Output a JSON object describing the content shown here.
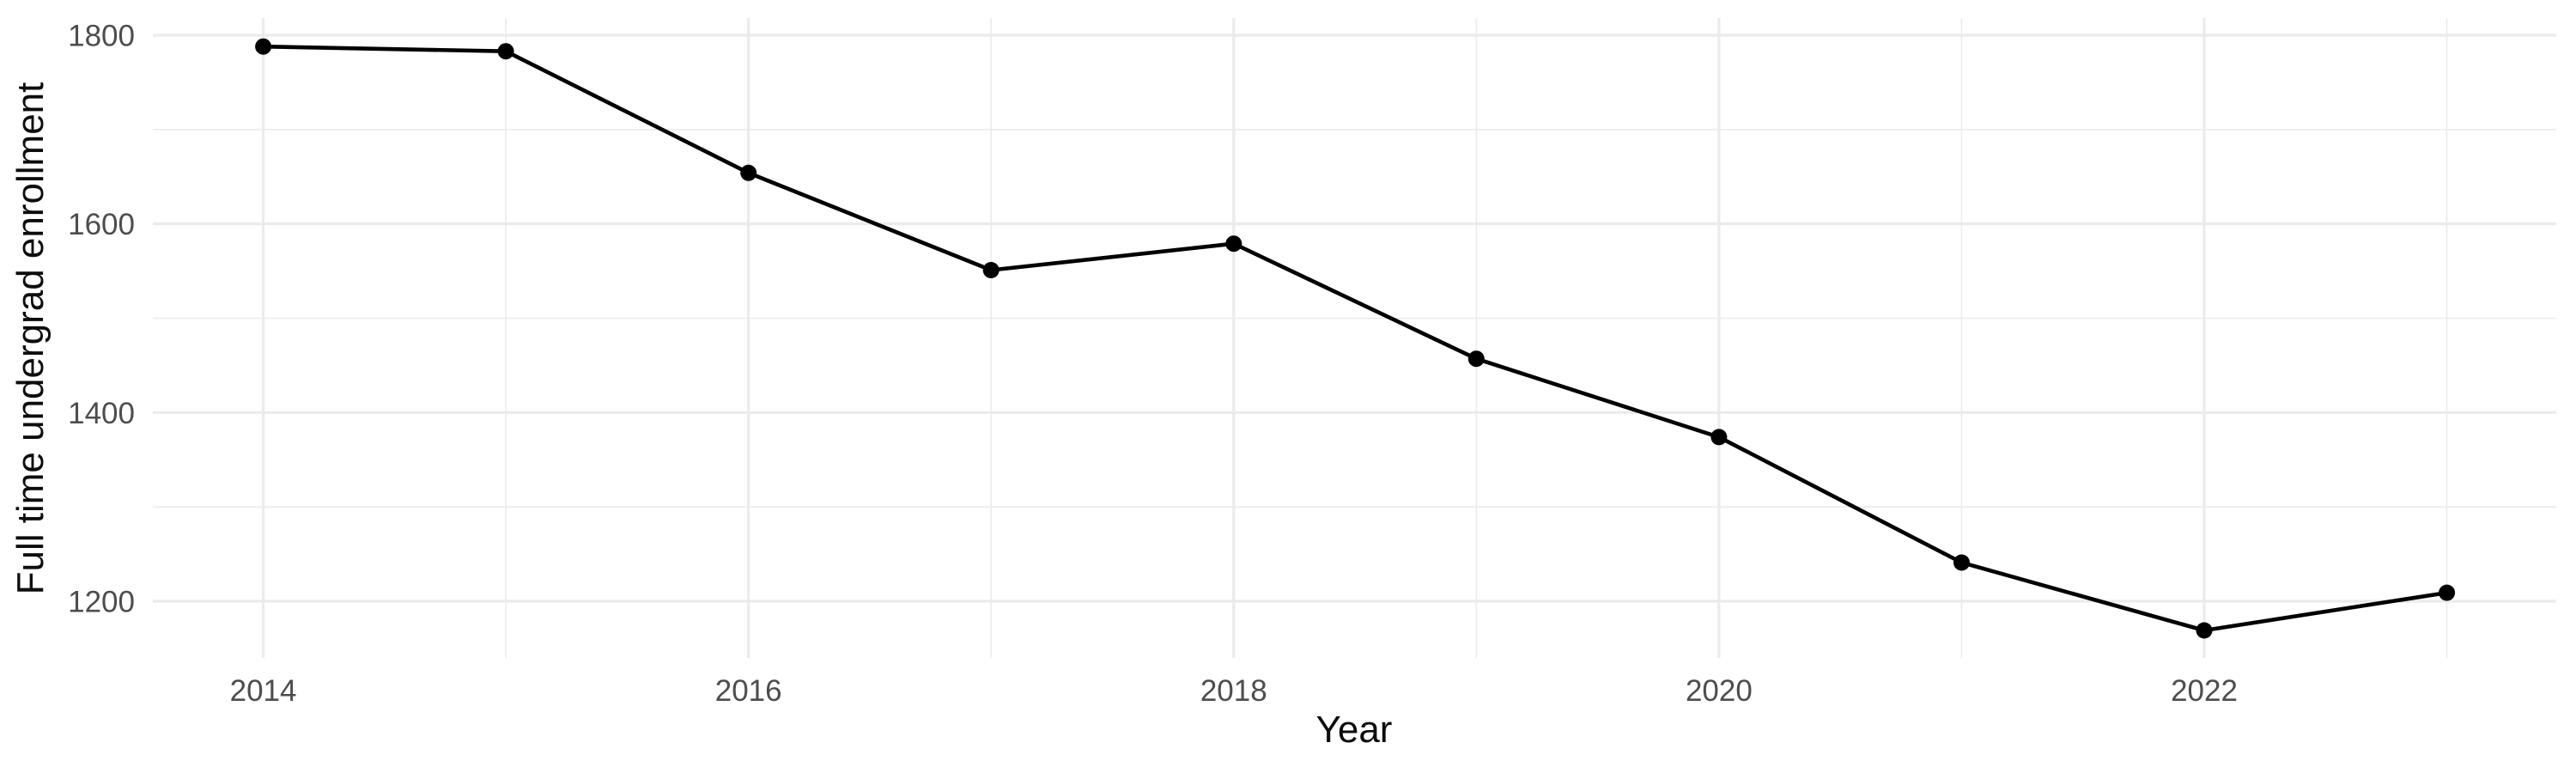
{
  "chart_data": {
    "type": "line",
    "title": "",
    "xlabel": "Year",
    "ylabel": "Full time undergrad enrollment",
    "x": [
      2014,
      2015,
      2016,
      2017,
      2018,
      2019,
      2020,
      2021,
      2022,
      2023
    ],
    "series": [
      {
        "name": "Full time undergrad enrollment",
        "values": [
          1788,
          1783,
          1654,
          1551,
          1579,
          1457,
          1374,
          1241,
          1169,
          1209
        ]
      }
    ],
    "x_ticks": [
      2014,
      2016,
      2018,
      2020,
      2022
    ],
    "x_minor_ticks": [
      2015,
      2017,
      2019,
      2021,
      2023
    ],
    "y_ticks": [
      1200,
      1400,
      1600,
      1800
    ],
    "y_minor_ticks": [
      1300,
      1500,
      1700
    ],
    "xlim": [
      2013.545,
      2023.451
    ],
    "ylim": [
      1139.9,
      1818.2
    ],
    "grid": true,
    "legend": false,
    "marker": "filled-circle",
    "colors": {
      "line": "#000000",
      "point": "#000000",
      "grid": "#EBEBEB",
      "tick_label": "#4D4D4D",
      "axis_title": "#0d0d0d",
      "background": "#FFFFFF"
    }
  }
}
